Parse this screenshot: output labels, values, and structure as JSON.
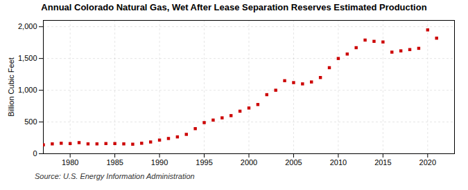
{
  "chart_data": {
    "type": "scatter",
    "title": "Annual Colorado Natural Gas, Wet After Lease Separation Reserves Estimated Production",
    "ylabel": "Billion Cubic Feet",
    "source": "Source: U.S. Energy Information Administration",
    "x": [
      1977,
      1978,
      1979,
      1980,
      1981,
      1982,
      1983,
      1984,
      1985,
      1986,
      1987,
      1988,
      1989,
      1990,
      1991,
      1992,
      1993,
      1994,
      1995,
      1996,
      1997,
      1998,
      1999,
      2000,
      2001,
      2002,
      2003,
      2004,
      2005,
      2006,
      2007,
      2008,
      2009,
      2010,
      2011,
      2012,
      2013,
      2014,
      2015,
      2016,
      2017,
      2018,
      2019,
      2020,
      2021
    ],
    "values": [
      140,
      155,
      165,
      160,
      175,
      155,
      155,
      160,
      160,
      155,
      150,
      165,
      185,
      215,
      240,
      265,
      305,
      395,
      490,
      530,
      565,
      600,
      670,
      720,
      775,
      930,
      1000,
      1150,
      1120,
      1100,
      1130,
      1200,
      1355,
      1500,
      1570,
      1670,
      1790,
      1770,
      1760,
      1600,
      1620,
      1640,
      1660,
      1950,
      1820
    ],
    "color": "#cc0000",
    "marker": "square",
    "grid": true,
    "xlim": [
      1977,
      2023
    ],
    "xticks": [
      1980,
      1985,
      1990,
      1995,
      2000,
      2005,
      2010,
      2015,
      2020
    ],
    "ylim": [
      0,
      2100
    ],
    "yticks": [
      0,
      500,
      {
        "value": 1000,
        "label": "1,000"
      },
      {
        "value": 1500,
        "label": "1,500"
      },
      {
        "value": 2000,
        "label": "2,000"
      }
    ]
  }
}
